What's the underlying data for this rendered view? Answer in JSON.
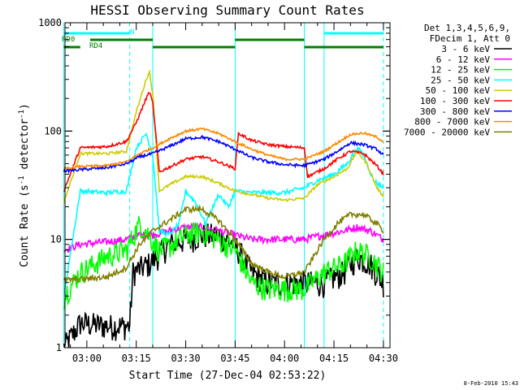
{
  "chart_data": {
    "type": "line",
    "title": "HESSI Observing Summary Count Rates",
    "xlabel": "Start Time (27-Dec-04 02:53:22)",
    "ylabel": "Count Rate (s",
    "ylabel_sup1": "-1",
    "ylabel_mid": " detector",
    "ylabel_sup2": "-1",
    "ylabel_end": ")",
    "y_scale": "log",
    "xlim": [
      "02:53:22",
      "04:32:00"
    ],
    "ylim": [
      1,
      1000
    ],
    "x_ticks": [
      "03:00",
      "03:15",
      "03:30",
      "03:45",
      "04:00",
      "04:15",
      "04:30"
    ],
    "y_ticks": [
      "1",
      "10",
      "100",
      "1000"
    ],
    "legend_header": [
      "Det 1,3,4,5,6,9,",
      "FDecim 1, Att 0"
    ],
    "legend_position": "right",
    "footer": "8-Feb-2010 15:43",
    "flags": [
      {
        "label": "N",
        "color": "#00ffff",
        "segments": [
          [
            "02:53",
            "03:13"
          ],
          [
            "04:12",
            "04:30"
          ]
        ]
      },
      {
        "label": "RD0",
        "color": "#008000",
        "segments": [
          [
            "03:01",
            "03:20"
          ],
          [
            "03:45",
            "04:06"
          ]
        ]
      },
      {
        "label": "RD4",
        "color": "#008000",
        "segments": [
          [
            "02:53",
            "02:58"
          ],
          [
            "03:20",
            "03:45"
          ],
          [
            "04:06",
            "04:30"
          ]
        ]
      }
    ],
    "night_lines": [
      {
        "time": "02:53",
        "style": "solid"
      },
      {
        "time": "03:13",
        "style": "dashed"
      },
      {
        "time": "03:20",
        "style": "solid"
      },
      {
        "time": "03:45",
        "style": "solid"
      },
      {
        "time": "04:06",
        "style": "solid"
      },
      {
        "time": "04:12",
        "style": "solid"
      },
      {
        "time": "04:30",
        "style": "dashed"
      }
    ],
    "series": [
      {
        "name": "3 - 6 keV",
        "color": "#000000",
        "noise": 0.28,
        "points": [
          [
            "02:53",
            1
          ],
          [
            "02:58",
            1.7
          ],
          [
            "03:06",
            1.6
          ],
          [
            "03:13",
            1.6
          ],
          [
            "03:14",
            5
          ],
          [
            "03:19",
            6
          ],
          [
            "03:25",
            9
          ],
          [
            "03:30",
            10
          ],
          [
            "03:35",
            11
          ],
          [
            "03:40",
            11
          ],
          [
            "03:45",
            9
          ],
          [
            "03:50",
            5
          ],
          [
            "03:55",
            4
          ],
          [
            "04:00",
            4
          ],
          [
            "04:06",
            4
          ],
          [
            "04:12",
            4
          ],
          [
            "04:18",
            5
          ],
          [
            "04:22",
            7
          ],
          [
            "04:26",
            6
          ],
          [
            "04:30",
            4
          ]
        ]
      },
      {
        "name": "6 - 12 keV",
        "color": "#ff00ff",
        "noise": 0.08,
        "points": [
          [
            "02:53",
            8
          ],
          [
            "02:58",
            9
          ],
          [
            "03:06",
            9.5
          ],
          [
            "03:12",
            10
          ],
          [
            "03:16",
            11
          ],
          [
            "03:20",
            11
          ],
          [
            "03:25",
            12
          ],
          [
            "03:30",
            13
          ],
          [
            "03:35",
            13
          ],
          [
            "03:40",
            12
          ],
          [
            "03:45",
            11
          ],
          [
            "03:50",
            10
          ],
          [
            "03:55",
            10
          ],
          [
            "04:00",
            10
          ],
          [
            "04:06",
            10
          ],
          [
            "04:12",
            11
          ],
          [
            "04:18",
            12
          ],
          [
            "04:22",
            13
          ],
          [
            "04:26",
            12
          ],
          [
            "04:30",
            10
          ]
        ]
      },
      {
        "name": "12 - 25 keV",
        "color": "#00ff00",
        "noise": 0.25,
        "points": [
          [
            "02:53",
            3
          ],
          [
            "02:58",
            5
          ],
          [
            "03:06",
            7
          ],
          [
            "03:12",
            8
          ],
          [
            "03:16",
            14
          ],
          [
            "03:18",
            12
          ],
          [
            "03:22",
            8
          ],
          [
            "03:26",
            9
          ],
          [
            "03:30",
            11
          ],
          [
            "03:35",
            12
          ],
          [
            "03:40",
            10
          ],
          [
            "03:45",
            8
          ],
          [
            "03:50",
            4
          ],
          [
            "03:55",
            3.5
          ],
          [
            "04:00",
            3.5
          ],
          [
            "04:06",
            3.5
          ],
          [
            "04:12",
            5
          ],
          [
            "04:18",
            6
          ],
          [
            "04:22",
            8
          ],
          [
            "04:26",
            7
          ],
          [
            "04:30",
            5
          ]
        ]
      },
      {
        "name": "25 - 50 keV",
        "color": "#00ffff",
        "noise": 0.05,
        "points": [
          [
            "02:53",
            3
          ],
          [
            "02:58",
            28
          ],
          [
            "03:06",
            27
          ],
          [
            "03:12",
            28
          ],
          [
            "03:15",
            70
          ],
          [
            "03:18",
            95
          ],
          [
            "03:20",
            60
          ],
          [
            "03:22",
            12
          ],
          [
            "03:25",
            11
          ],
          [
            "03:28",
            14
          ],
          [
            "03:30",
            28
          ],
          [
            "03:33",
            22
          ],
          [
            "03:36",
            14
          ],
          [
            "03:40",
            26
          ],
          [
            "03:43",
            20
          ],
          [
            "03:45",
            28
          ],
          [
            "03:50",
            27
          ],
          [
            "03:55",
            27
          ],
          [
            "04:00",
            27
          ],
          [
            "04:06",
            30
          ],
          [
            "04:10",
            35
          ],
          [
            "04:15",
            40
          ],
          [
            "04:19",
            50
          ],
          [
            "04:22",
            70
          ],
          [
            "04:24",
            60
          ],
          [
            "04:27",
            35
          ],
          [
            "04:30",
            30
          ]
        ]
      },
      {
        "name": "50 - 100 keV",
        "color": "#cccc00",
        "noise": 0.03,
        "points": [
          [
            "02:53",
            22
          ],
          [
            "02:58",
            62
          ],
          [
            "03:06",
            62
          ],
          [
            "03:12",
            65
          ],
          [
            "03:15",
            150
          ],
          [
            "03:18",
            300
          ],
          [
            "03:19",
            350
          ],
          [
            "03:20",
            220
          ],
          [
            "03:22",
            28
          ],
          [
            "03:26",
            33
          ],
          [
            "03:30",
            38
          ],
          [
            "03:35",
            38
          ],
          [
            "03:40",
            33
          ],
          [
            "03:45",
            28
          ],
          [
            "03:50",
            26
          ],
          [
            "03:55",
            24
          ],
          [
            "04:00",
            23
          ],
          [
            "04:06",
            24
          ],
          [
            "04:10",
            32
          ],
          [
            "04:15",
            38
          ],
          [
            "04:19",
            45
          ],
          [
            "04:22",
            65
          ],
          [
            "04:25",
            50
          ],
          [
            "04:28",
            30
          ],
          [
            "04:30",
            25
          ]
        ]
      },
      {
        "name": "100 - 300 keV",
        "color": "#ff0000",
        "noise": 0.03,
        "points": [
          [
            "02:53",
            28
          ],
          [
            "02:58",
            70
          ],
          [
            "03:06",
            72
          ],
          [
            "03:12",
            80
          ],
          [
            "03:15",
            120
          ],
          [
            "03:18",
            200
          ],
          [
            "03:19",
            230
          ],
          [
            "03:20",
            180
          ],
          [
            "03:22",
            42
          ],
          [
            "03:26",
            48
          ],
          [
            "03:30",
            55
          ],
          [
            "03:35",
            58
          ],
          [
            "03:40",
            52
          ],
          [
            "03:45",
            45
          ],
          [
            "03:46",
            95
          ],
          [
            "03:50",
            82
          ],
          [
            "03:55",
            75
          ],
          [
            "04:00",
            72
          ],
          [
            "04:06",
            70
          ],
          [
            "04:07",
            38
          ],
          [
            "04:12",
            45
          ],
          [
            "04:16",
            55
          ],
          [
            "04:20",
            65
          ],
          [
            "04:24",
            62
          ],
          [
            "04:28",
            48
          ],
          [
            "04:30",
            40
          ]
        ]
      },
      {
        "name": "300 - 800 keV",
        "color": "#0000ff",
        "noise": 0.03,
        "points": [
          [
            "02:53",
            43
          ],
          [
            "02:58",
            44
          ],
          [
            "03:06",
            46
          ],
          [
            "03:12",
            50
          ],
          [
            "03:16",
            58
          ],
          [
            "03:20",
            62
          ],
          [
            "03:25",
            72
          ],
          [
            "03:30",
            85
          ],
          [
            "03:35",
            88
          ],
          [
            "03:40",
            80
          ],
          [
            "03:45",
            68
          ],
          [
            "03:50",
            57
          ],
          [
            "03:55",
            52
          ],
          [
            "04:00",
            49
          ],
          [
            "04:06",
            48
          ],
          [
            "04:12",
            55
          ],
          [
            "04:16",
            65
          ],
          [
            "04:20",
            78
          ],
          [
            "04:24",
            75
          ],
          [
            "04:28",
            68
          ],
          [
            "04:30",
            60
          ]
        ]
      },
      {
        "name": "800 - 7000 keV",
        "color": "#ff8800",
        "noise": 0.025,
        "points": [
          [
            "02:53",
            45
          ],
          [
            "02:58",
            47
          ],
          [
            "03:06",
            48
          ],
          [
            "03:12",
            52
          ],
          [
            "03:16",
            62
          ],
          [
            "03:20",
            70
          ],
          [
            "03:25",
            85
          ],
          [
            "03:30",
            100
          ],
          [
            "03:35",
            105
          ],
          [
            "03:40",
            95
          ],
          [
            "03:45",
            80
          ],
          [
            "03:50",
            68
          ],
          [
            "03:55",
            60
          ],
          [
            "04:00",
            55
          ],
          [
            "04:06",
            55
          ],
          [
            "04:12",
            65
          ],
          [
            "04:16",
            78
          ],
          [
            "04:20",
            93
          ],
          [
            "04:24",
            96
          ],
          [
            "04:28",
            88
          ],
          [
            "04:30",
            80
          ]
        ]
      },
      {
        "name": "7000 - 20000 keV",
        "color": "#808000",
        "noise": 0.06,
        "points": [
          [
            "02:53",
            4.2
          ],
          [
            "02:58",
            4.3
          ],
          [
            "03:06",
            4.5
          ],
          [
            "03:12",
            5.5
          ],
          [
            "03:16",
            9
          ],
          [
            "03:20",
            12
          ],
          [
            "03:25",
            15
          ],
          [
            "03:30",
            19
          ],
          [
            "03:35",
            19
          ],
          [
            "03:40",
            15
          ],
          [
            "03:45",
            10
          ],
          [
            "03:50",
            6
          ],
          [
            "03:55",
            5
          ],
          [
            "04:00",
            4.5
          ],
          [
            "04:06",
            5
          ],
          [
            "04:12",
            10
          ],
          [
            "04:16",
            14
          ],
          [
            "04:20",
            17
          ],
          [
            "04:24",
            17
          ],
          [
            "04:28",
            14
          ],
          [
            "04:30",
            12
          ]
        ]
      }
    ]
  }
}
